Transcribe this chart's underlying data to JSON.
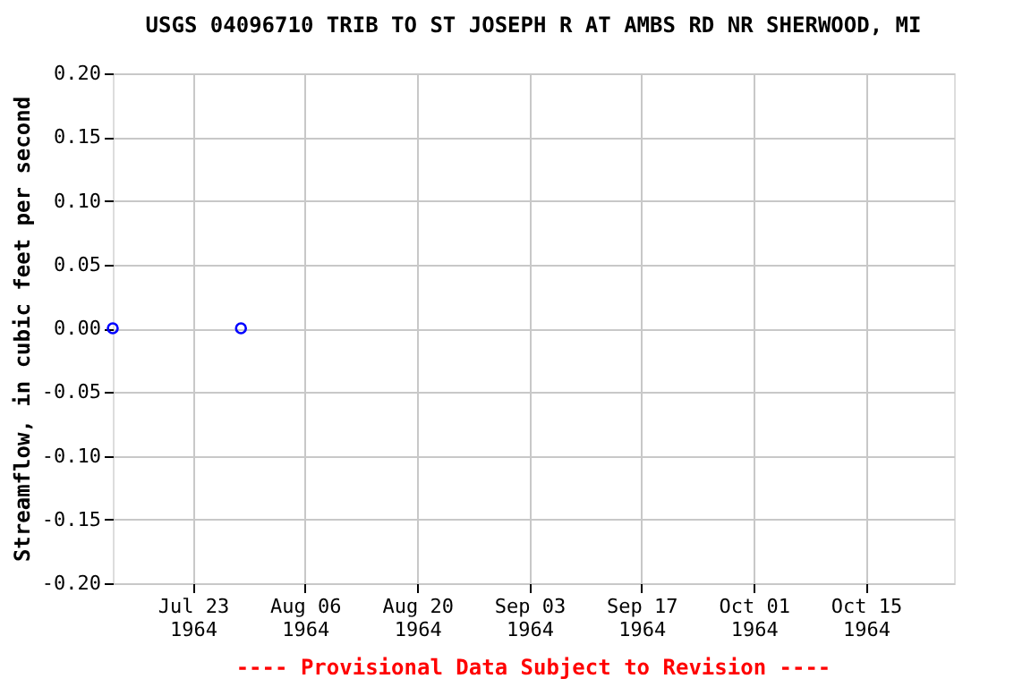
{
  "chart_data": {
    "type": "scatter",
    "title": "USGS 04096710 TRIB TO ST JOSEPH R AT AMBS RD NR SHERWOOD, MI",
    "ylabel": "Streamflow, in cubic feet per second",
    "x": [
      "1964-07-13",
      "1964-07-29"
    ],
    "series": [
      {
        "color": "#0000ff",
        "values": [
          0.0,
          0.0
        ]
      }
    ],
    "xlim": [
      "1964-07-13",
      "1964-10-26"
    ],
    "xticks": [
      {
        "value": "1964-07-23",
        "label": "Jul 23\n1964"
      },
      {
        "value": "1964-08-06",
        "label": "Aug 06\n1964"
      },
      {
        "value": "1964-08-20",
        "label": "Aug 20\n1964"
      },
      {
        "value": "1964-09-03",
        "label": "Sep 03\n1964"
      },
      {
        "value": "1964-09-17",
        "label": "Sep 17\n1964"
      },
      {
        "value": "1964-10-01",
        "label": "Oct 01\n1964"
      },
      {
        "value": "1964-10-15",
        "label": "Oct 15\n1964"
      }
    ],
    "ylim": [
      -0.2,
      0.2
    ],
    "yticks": [
      {
        "value": -0.2,
        "label": "-0.20"
      },
      {
        "value": -0.15,
        "label": "-0.15"
      },
      {
        "value": -0.1,
        "label": "-0.10"
      },
      {
        "value": -0.05,
        "label": "-0.05"
      },
      {
        "value": 0.0,
        "label": "0.00"
      },
      {
        "value": 0.05,
        "label": "0.05"
      },
      {
        "value": 0.1,
        "label": "0.10"
      },
      {
        "value": 0.15,
        "label": "0.15"
      },
      {
        "value": 0.2,
        "label": "0.20"
      }
    ],
    "grid": true,
    "marker": "circle",
    "legend": false,
    "annotations": [
      "---- Provisional Data Subject to Revision ----"
    ]
  }
}
